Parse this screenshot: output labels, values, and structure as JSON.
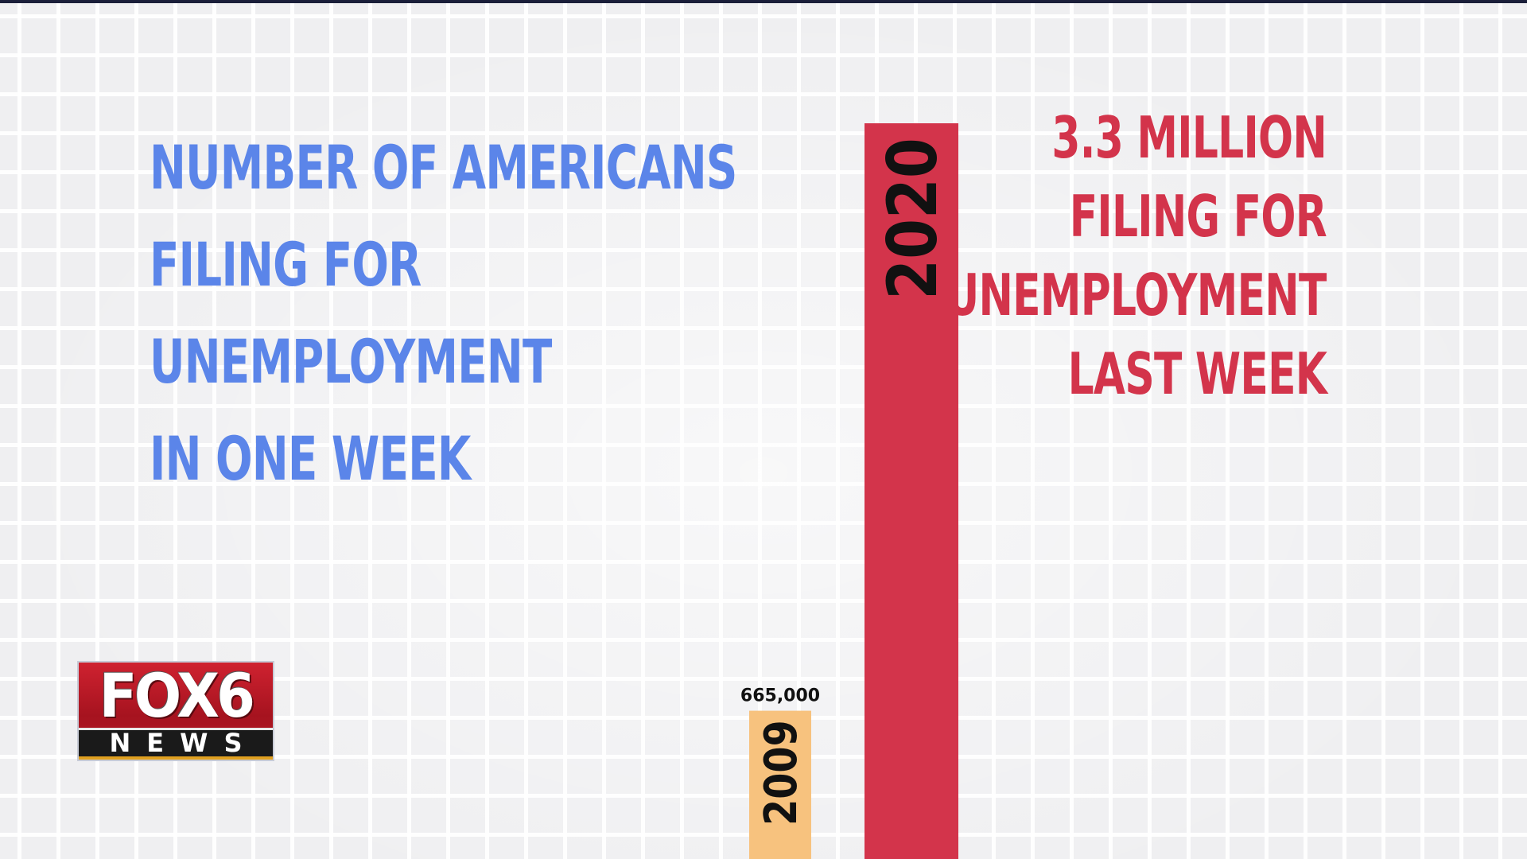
{
  "title_lines": [
    "NUMBER OF AMERICANS",
    "FILING FOR",
    "UNEMPLOYMENT",
    "IN ONE WEEK"
  ],
  "annotation_lines": [
    "3.3 MILLION",
    "FILING FOR",
    "UNEMPLOYMENT",
    "LAST WEEK"
  ],
  "logo": {
    "brand": "FOX6",
    "network": "NEWS"
  },
  "chart_data": {
    "type": "bar",
    "title": "NUMBER OF AMERICANS FILING FOR UNEMPLOYMENT IN ONE WEEK",
    "categories": [
      "2009",
      "2020"
    ],
    "values": [
      665000,
      3300000
    ],
    "data_labels": [
      "665,000",
      ""
    ],
    "annotation": "3.3 MILLION FILING FOR UNEMPLOYMENT LAST WEEK",
    "colors": {
      "2009": "#f7c27e",
      "2020": "#d3344b"
    },
    "grid": true,
    "legend": "none",
    "title_color": "#5b85e9",
    "annotation_color": "#d3344b"
  }
}
